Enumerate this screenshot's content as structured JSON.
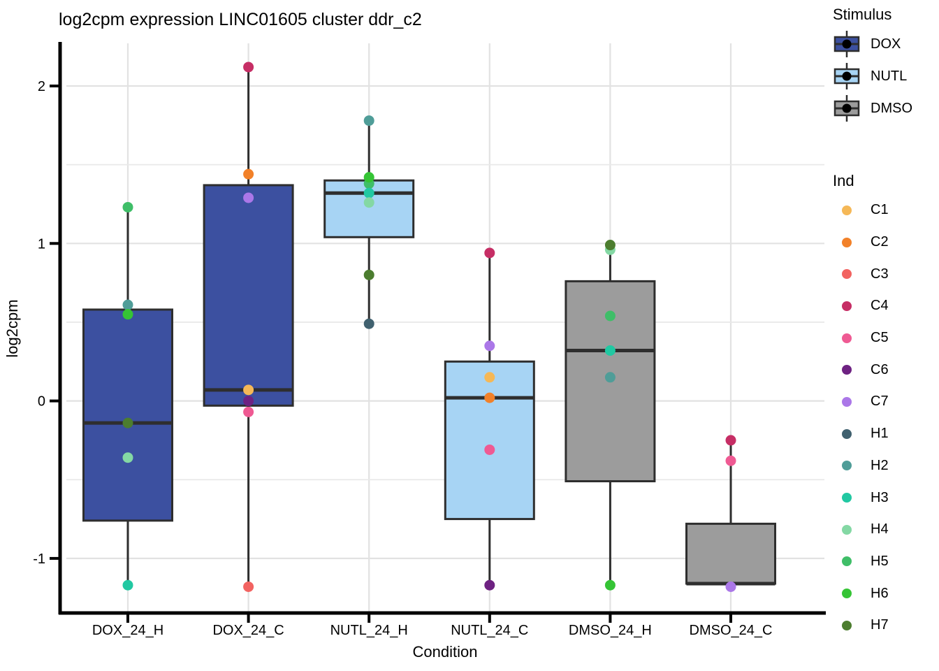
{
  "title": "log2cpm expression LINC01605 cluster ddr_c2",
  "axes": {
    "y": {
      "label": "log2cpm",
      "tick_values": [
        2,
        1,
        0,
        -1
      ],
      "tick_labels": [
        "2",
        "1",
        "0",
        "-1"
      ],
      "minor_ticks": [
        1.5,
        0.5,
        -0.5
      ],
      "range_shown": [
        -1.35,
        2.27
      ]
    },
    "x": {
      "label": "Condition",
      "categories": [
        "DOX_24_H",
        "DOX_24_C",
        "NUTL_24_H",
        "NUTL_24_C",
        "DMSO_24_H",
        "DMSO_24_C"
      ]
    }
  },
  "chart_data": {
    "type": "boxplot",
    "title": "log2cpm expression LINC01605 cluster ddr_c2",
    "xlabel": "Condition",
    "ylabel": "log2cpm",
    "ylim": [
      -1.35,
      2.27
    ],
    "grid": true,
    "legend_position": "right",
    "categories": [
      "DOX_24_H",
      "DOX_24_C",
      "NUTL_24_H",
      "NUTL_24_C",
      "DMSO_24_H",
      "DMSO_24_C"
    ],
    "boxes": [
      {
        "condition": "DOX_24_H",
        "stimulus": "DOX",
        "whisker_low": -1.17,
        "q1": -0.76,
        "median": -0.14,
        "q3": 0.58,
        "whisker_high": 1.23,
        "points": [
          {
            "ind": "H5",
            "value": 1.23
          },
          {
            "ind": "H2",
            "value": 0.61
          },
          {
            "ind": "H6",
            "value": 0.55
          },
          {
            "ind": "H7",
            "value": -0.14
          },
          {
            "ind": "H4",
            "value": -0.36
          },
          {
            "ind": "H3",
            "value": -1.17
          }
        ]
      },
      {
        "condition": "DOX_24_C",
        "stimulus": "DOX",
        "whisker_low": -1.18,
        "q1": -0.03,
        "median": 0.07,
        "q3": 1.37,
        "whisker_high": 2.12,
        "points": [
          {
            "ind": "C4",
            "value": 2.12
          },
          {
            "ind": "C2",
            "value": 1.44
          },
          {
            "ind": "C7",
            "value": 1.29
          },
          {
            "ind": "C1",
            "value": 0.07
          },
          {
            "ind": "C6",
            "value": 0.0
          },
          {
            "ind": "C5",
            "value": -0.07
          },
          {
            "ind": "C3",
            "value": -1.18
          }
        ]
      },
      {
        "condition": "NUTL_24_H",
        "stimulus": "NUTL",
        "whisker_low": 0.49,
        "q1": 1.04,
        "median": 1.32,
        "q3": 1.4,
        "whisker_high": 1.78,
        "points": [
          {
            "ind": "H2",
            "value": 1.78
          },
          {
            "ind": "H5",
            "value": 1.38
          },
          {
            "ind": "H6",
            "value": 1.42
          },
          {
            "ind": "H3",
            "value": 1.32
          },
          {
            "ind": "H4",
            "value": 1.26
          },
          {
            "ind": "H7",
            "value": 0.8
          },
          {
            "ind": "H1",
            "value": 0.49
          }
        ]
      },
      {
        "condition": "NUTL_24_C",
        "stimulus": "NUTL",
        "whisker_low": -1.17,
        "q1": -0.75,
        "median": 0.02,
        "q3": 0.25,
        "whisker_high": 0.94,
        "points": [
          {
            "ind": "C4",
            "value": 0.94
          },
          {
            "ind": "C7",
            "value": 0.35
          },
          {
            "ind": "C1",
            "value": 0.15
          },
          {
            "ind": "C2",
            "value": 0.02
          },
          {
            "ind": "C5",
            "value": -0.31
          },
          {
            "ind": "C6",
            "value": -1.17
          }
        ]
      },
      {
        "condition": "DMSO_24_H",
        "stimulus": "DMSO",
        "whisker_low": -1.17,
        "q1": -0.51,
        "median": 0.32,
        "q3": 0.76,
        "whisker_high": 0.99,
        "points": [
          {
            "ind": "H4",
            "value": 0.96
          },
          {
            "ind": "H7",
            "value": 0.99
          },
          {
            "ind": "H5",
            "value": 0.54
          },
          {
            "ind": "H3",
            "value": 0.32
          },
          {
            "ind": "H2",
            "value": 0.15
          },
          {
            "ind": "H6",
            "value": -1.17
          }
        ]
      },
      {
        "condition": "DMSO_24_C",
        "stimulus": "DMSO",
        "whisker_low": -1.16,
        "q1": -1.16,
        "median": -1.16,
        "q3": -0.78,
        "whisker_high": -0.25,
        "points": [
          {
            "ind": "C4",
            "value": -0.25
          },
          {
            "ind": "C5",
            "value": -0.38
          },
          {
            "ind": "C7",
            "value": -1.18
          }
        ]
      }
    ]
  },
  "legend": {
    "stimulus": {
      "title": "Stimulus",
      "entries": [
        {
          "label": "DOX",
          "color": "#3C50A0"
        },
        {
          "label": "NUTL",
          "color": "#A7D4F4"
        },
        {
          "label": "DMSO",
          "color": "#9C9C9C"
        }
      ]
    },
    "ind": {
      "title": "Ind",
      "entries": [
        {
          "label": "C1",
          "color": "#F5B857"
        },
        {
          "label": "C2",
          "color": "#F28129"
        },
        {
          "label": "C3",
          "color": "#F26361"
        },
        {
          "label": "C4",
          "color": "#C62E65"
        },
        {
          "label": "C5",
          "color": "#EF5A93"
        },
        {
          "label": "C6",
          "color": "#6E2282"
        },
        {
          "label": "C7",
          "color": "#AB77E8"
        },
        {
          "label": "H1",
          "color": "#40616F"
        },
        {
          "label": "H2",
          "color": "#4F9D98"
        },
        {
          "label": "H3",
          "color": "#21C8A2"
        },
        {
          "label": "H4",
          "color": "#84D8A4"
        },
        {
          "label": "H5",
          "color": "#3FBE68"
        },
        {
          "label": "H6",
          "color": "#35C435"
        },
        {
          "label": "H7",
          "color": "#4C7D2F"
        }
      ]
    }
  },
  "style_colors": {
    "grid_major": "#E2E2E2",
    "grid_minor": "#E9E9E9",
    "box_border": "#2E2E2E",
    "axis": "#000000"
  }
}
